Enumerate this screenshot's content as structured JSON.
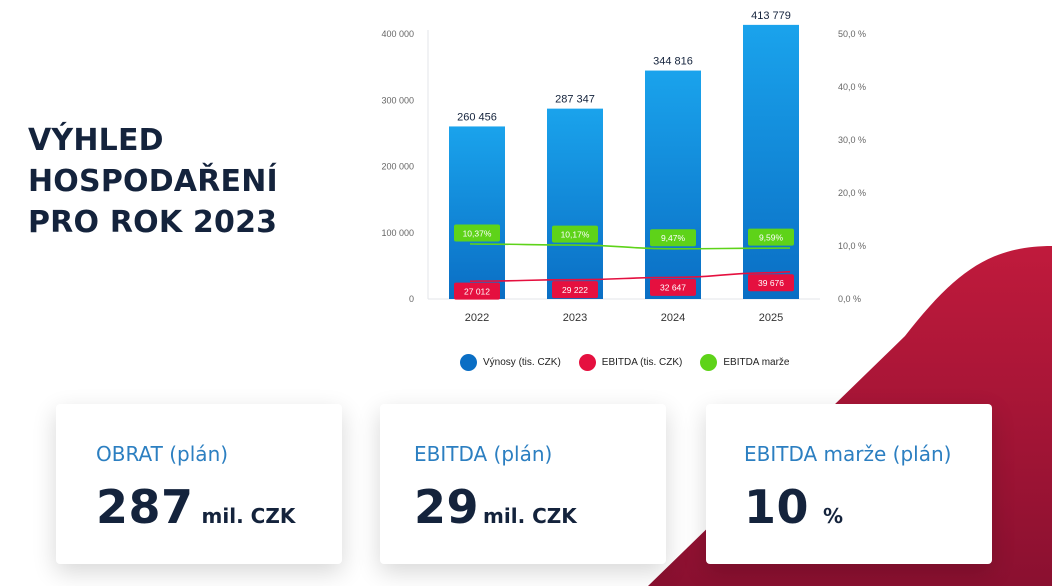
{
  "title_lines": [
    "VÝHLED",
    "HOSPODAŘENÍ",
    "PRO ROK 2023"
  ],
  "colors": {
    "revenue": "#0a6ec4",
    "revenue_light": "#1aa3ec",
    "ebitda": "#e5103f",
    "margin": "#5ed319",
    "background_accent": "#b3163a"
  },
  "chart_data": {
    "type": "bar",
    "categories": [
      "2022",
      "2023",
      "2024",
      "2025"
    ],
    "ylim": [
      0,
      400000
    ],
    "y_ticks": [
      "0",
      "100 000",
      "200 000",
      "300 000",
      "400 000"
    ],
    "y2lim": [
      0,
      50
    ],
    "y2_ticks": [
      "0,0 %",
      "10,0 %",
      "20,0 %",
      "30,0 %",
      "40,0 %",
      "50,0 %"
    ],
    "grid": false,
    "legend_position": "bottom",
    "series": [
      {
        "name": "Výnosy (tis. CZK)",
        "type": "bar",
        "axis": "left",
        "values": [
          260456,
          287347,
          344816,
          413779
        ],
        "labels": [
          "260 456",
          "287 347",
          "344 816",
          "413 779"
        ]
      },
      {
        "name": "EBITDA (tis. CZK)",
        "type": "line",
        "axis": "left",
        "values": [
          27012,
          29222,
          32647,
          39676
        ],
        "labels": [
          "27 012",
          "29 222",
          "32 647",
          "39 676"
        ]
      },
      {
        "name": "EBITDA marže",
        "type": "line",
        "axis": "right",
        "values": [
          10.37,
          10.17,
          9.47,
          9.59
        ],
        "labels": [
          "10,37%",
          "10,17%",
          "9,47%",
          "9,59%"
        ]
      }
    ]
  },
  "cards": [
    {
      "label": "OBRAT (plán)",
      "value": "287",
      "unit": "mil. CZK"
    },
    {
      "label": "EBITDA (plán)",
      "value": "29",
      "unit": "mil. CZK"
    },
    {
      "label": "EBITDA marže (plán)",
      "value": "10",
      "unit": "%"
    }
  ]
}
